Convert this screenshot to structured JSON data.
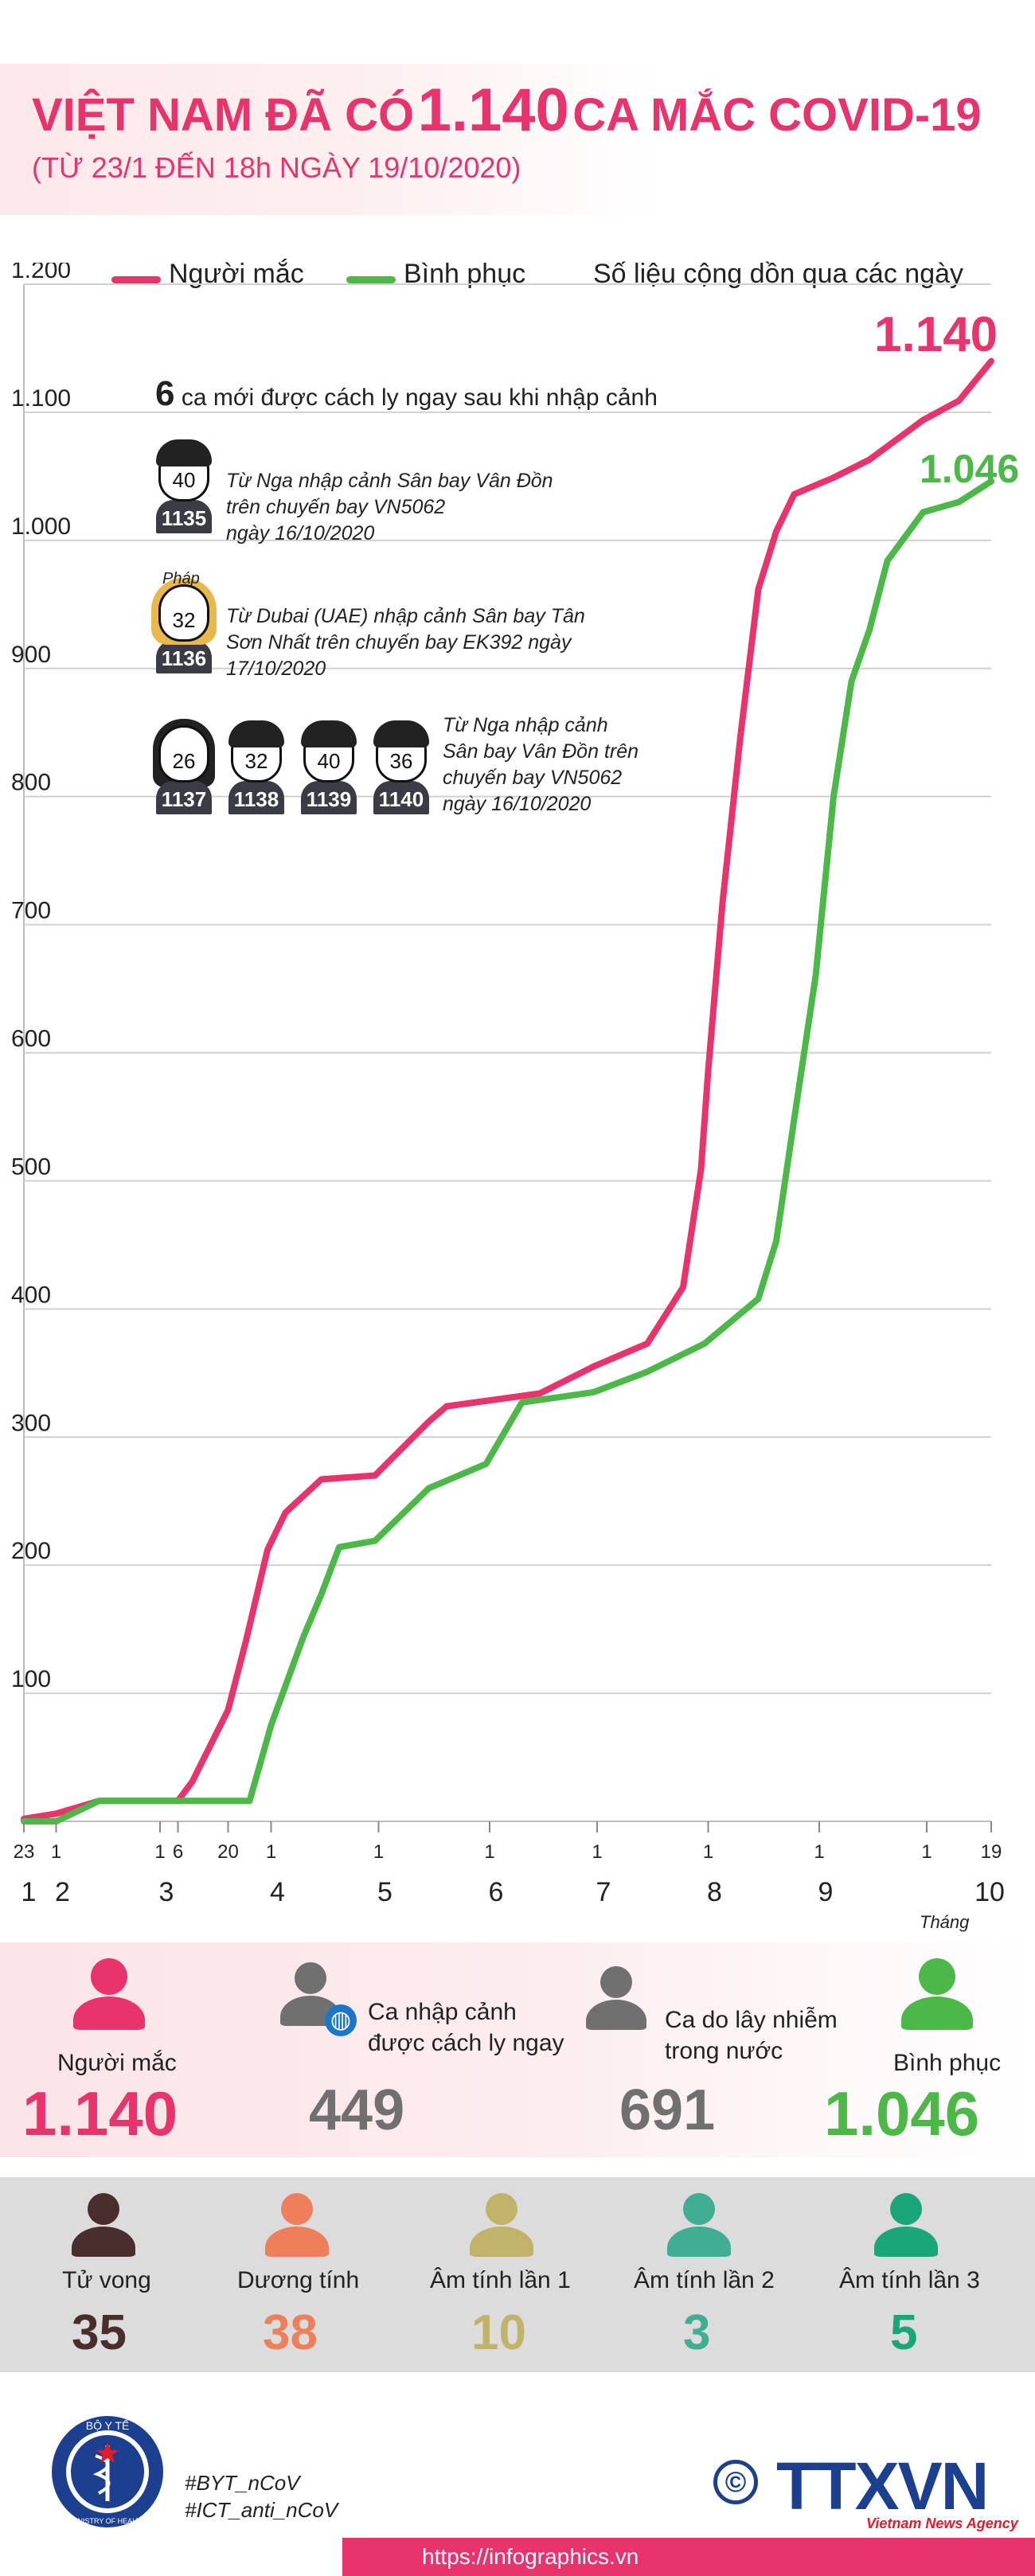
{
  "header": {
    "title_prefix": "VIỆT NAM ĐÃ CÓ",
    "title_number": "1.140",
    "title_suffix": "CA MẮC COVID-19",
    "subtitle": "(TỪ 23/1 ĐẾN 18h NGÀY 19/10/2020)"
  },
  "legend": {
    "cases": "Người mắc",
    "recovered": "Bình phục",
    "note": "Số liệu cộng dồn qua các ngày"
  },
  "colors": {
    "cases": "#e8336d",
    "recovered": "#4cb848",
    "grid": "#d0d0d0"
  },
  "chart_data": {
    "type": "line",
    "y_ticks": [
      "1.200",
      "1.100",
      "1.000",
      "900",
      "800",
      "700",
      "600",
      "500",
      "400",
      "300",
      "200",
      "100"
    ],
    "y_tick_values": [
      1200,
      1100,
      1000,
      900,
      800,
      700,
      600,
      500,
      400,
      300,
      200,
      100
    ],
    "ylim": [
      0,
      1200
    ],
    "xlim": [
      "2020-01-23",
      "2020-10-19"
    ],
    "day_ticks": [
      {
        "label": "23",
        "date": "2020-01-23"
      },
      {
        "label": "1",
        "date": "2020-02-01"
      },
      {
        "label": "1",
        "date": "2020-03-01"
      },
      {
        "label": "6",
        "date": "2020-03-06"
      },
      {
        "label": "20",
        "date": "2020-03-20"
      },
      {
        "label": "1",
        "date": "2020-04-01"
      },
      {
        "label": "1",
        "date": "2020-05-01"
      },
      {
        "label": "1",
        "date": "2020-06-01"
      },
      {
        "label": "1",
        "date": "2020-07-01"
      },
      {
        "label": "1",
        "date": "2020-08-01"
      },
      {
        "label": "1",
        "date": "2020-09-01"
      },
      {
        "label": "1",
        "date": "2020-10-01"
      },
      {
        "label": "19",
        "date": "2020-10-19"
      }
    ],
    "month_ticks": [
      {
        "label": "1",
        "date": "2020-01-23"
      },
      {
        "label": "2",
        "date": "2020-02-01"
      },
      {
        "label": "3",
        "date": "2020-03-01"
      },
      {
        "label": "4",
        "date": "2020-04-01"
      },
      {
        "label": "5",
        "date": "2020-05-01"
      },
      {
        "label": "6",
        "date": "2020-06-01"
      },
      {
        "label": "7",
        "date": "2020-07-01"
      },
      {
        "label": "8",
        "date": "2020-08-01"
      },
      {
        "label": "9",
        "date": "2020-09-01"
      },
      {
        "label": "10",
        "date": "2020-10-01"
      }
    ],
    "month_prefix": "Tháng",
    "series": [
      {
        "name": "Người mắc",
        "end_label": "1.140",
        "points": [
          [
            "2020-01-23",
            2
          ],
          [
            "2020-02-01",
            6
          ],
          [
            "2020-02-13",
            16
          ],
          [
            "2020-03-06",
            16
          ],
          [
            "2020-03-10",
            31
          ],
          [
            "2020-03-20",
            87
          ],
          [
            "2020-03-25",
            141
          ],
          [
            "2020-03-31",
            212
          ],
          [
            "2020-04-05",
            241
          ],
          [
            "2020-04-15",
            267
          ],
          [
            "2020-04-30",
            270
          ],
          [
            "2020-05-15",
            312
          ],
          [
            "2020-05-20",
            324
          ],
          [
            "2020-06-15",
            334
          ],
          [
            "2020-06-30",
            355
          ],
          [
            "2020-07-15",
            373
          ],
          [
            "2020-07-25",
            417
          ],
          [
            "2020-07-30",
            509
          ],
          [
            "2020-08-01",
            586
          ],
          [
            "2020-08-05",
            717
          ],
          [
            "2020-08-10",
            847
          ],
          [
            "2020-08-15",
            962
          ],
          [
            "2020-08-20",
            1007
          ],
          [
            "2020-08-25",
            1036
          ],
          [
            "2020-09-05",
            1049
          ],
          [
            "2020-09-15",
            1063
          ],
          [
            "2020-09-30",
            1094
          ],
          [
            "2020-10-10",
            1109
          ],
          [
            "2020-10-19",
            1140
          ]
        ]
      },
      {
        "name": "Bình phục",
        "end_label": "1.046",
        "points": [
          [
            "2020-01-23",
            0
          ],
          [
            "2020-02-01",
            0
          ],
          [
            "2020-02-13",
            16
          ],
          [
            "2020-03-20",
            16
          ],
          [
            "2020-03-26",
            16
          ],
          [
            "2020-04-01",
            75
          ],
          [
            "2020-04-10",
            144
          ],
          [
            "2020-04-15",
            177
          ],
          [
            "2020-04-20",
            214
          ],
          [
            "2020-04-30",
            219
          ],
          [
            "2020-05-15",
            260
          ],
          [
            "2020-05-31",
            279
          ],
          [
            "2020-06-10",
            327
          ],
          [
            "2020-06-30",
            335
          ],
          [
            "2020-07-15",
            351
          ],
          [
            "2020-07-31",
            373
          ],
          [
            "2020-08-15",
            408
          ],
          [
            "2020-08-20",
            453
          ],
          [
            "2020-08-25",
            548
          ],
          [
            "2020-08-31",
            660
          ],
          [
            "2020-09-05",
            800
          ],
          [
            "2020-09-10",
            890
          ],
          [
            "2020-09-15",
            930
          ],
          [
            "2020-09-20",
            984
          ],
          [
            "2020-09-30",
            1022
          ],
          [
            "2020-10-10",
            1030
          ],
          [
            "2020-10-19",
            1046
          ]
        ]
      }
    ]
  },
  "new_cases": {
    "count": "6",
    "headline": "ca mới được cách ly ngay sau khi nhập cảnh",
    "groups": [
      {
        "desc": [
          "Từ Nga nhập cảnh Sân bay Vân Đồn",
          "trên chuyến bay VN5062",
          "ngày 16/10/2020"
        ],
        "people": [
          {
            "age": "40",
            "id": "1135",
            "female": false
          }
        ]
      },
      {
        "desc": [
          "Từ Dubai (UAE) nhập cảnh Sân bay Tân",
          "Sơn Nhất trên chuyến bay EK392 ngày",
          "17/10/2020"
        ],
        "people": [
          {
            "age": "32",
            "id": "1136",
            "female": true,
            "note": "Pháp"
          }
        ]
      },
      {
        "desc": [
          "Từ Nga nhập cảnh",
          "Sân bay Vân Đồn trên",
          "chuyến bay VN5062",
          "ngày 16/10/2020"
        ],
        "people": [
          {
            "age": "26",
            "id": "1137",
            "female": true
          },
          {
            "age": "32",
            "id": "1138",
            "female": false
          },
          {
            "age": "40",
            "id": "1139",
            "female": false
          },
          {
            "age": "36",
            "id": "1140",
            "female": false
          }
        ]
      }
    ]
  },
  "summary_top": [
    {
      "label": "Người mắc",
      "value": "1.140",
      "color": "#e8336d"
    },
    {
      "label": "Ca nhập cảnh được cách ly ngay",
      "value": "449",
      "color": "#707070"
    },
    {
      "label": "Ca do lây nhiễm trong nước",
      "value": "691",
      "color": "#707070"
    },
    {
      "label": "Bình phục",
      "value": "1.046",
      "color": "#4cb848"
    }
  ],
  "summary_bottom": [
    {
      "label": "Tử vong",
      "value": "35",
      "color": "#4a2e2e"
    },
    {
      "label": "Dương tính",
      "value": "38",
      "color": "#ef7e5a"
    },
    {
      "label": "Âm tính lần 1",
      "value": "10",
      "color": "#c2b36a"
    },
    {
      "label": "Âm tính lần 2",
      "value": "3",
      "color": "#3fae93"
    },
    {
      "label": "Âm tính lần 3",
      "value": "5",
      "color": "#1aa679"
    }
  ],
  "footer": {
    "logo_left_top": "BỘ Y TẾ",
    "logo_left_bottom": "MINISTRY OF HEALTH",
    "hashtags": [
      "#BYT_nCoV",
      "#ICT_anti_nCoV"
    ],
    "copyright_symbol": "©",
    "agency": "TTXVN",
    "agency_sub": "Vietnam News Agency",
    "url": "https://infographics.vn"
  }
}
